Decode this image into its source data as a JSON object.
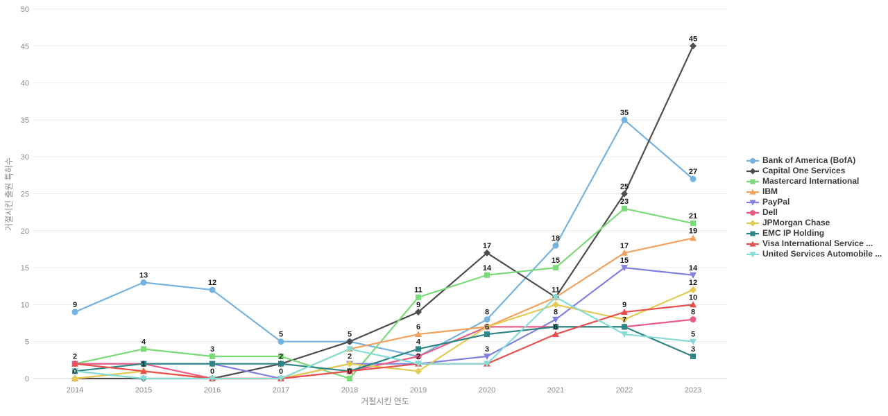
{
  "chart_data": {
    "type": "line",
    "title": "",
    "xlabel": "거절시킨 연도",
    "ylabel": "거절시킨 출원 특허수",
    "x": [
      2014,
      2015,
      2016,
      2017,
      2018,
      2019,
      2020,
      2021,
      2022,
      2023
    ],
    "yticks": [
      0,
      5,
      10,
      15,
      20,
      25,
      30,
      35,
      40,
      45,
      50
    ],
    "ylim": [
      0,
      50
    ],
    "grid": "horizontal",
    "legend_position": "right",
    "axis_text_color": "#8a8a8a",
    "point_label_color": "#1a1a1a",
    "series": [
      {
        "name": "Bank of America (BofA)",
        "color": "#74b2e2",
        "marker": "circle",
        "values": [
          9,
          13,
          12,
          5,
          5,
          3,
          8,
          18,
          35,
          27
        ],
        "labels": [
          9,
          13,
          12,
          5,
          null,
          null,
          8,
          18,
          35,
          27
        ]
      },
      {
        "name": "Capital One Services",
        "color": "#4d4d4d",
        "marker": "diamond",
        "values": [
          0,
          0,
          0,
          2,
          5,
          9,
          17,
          11,
          25,
          45
        ],
        "labels": [
          null,
          null,
          null,
          null,
          5,
          9,
          17,
          null,
          25,
          45
        ]
      },
      {
        "name": "Mastercard International",
        "color": "#79da77",
        "marker": "square",
        "values": [
          2,
          4,
          3,
          3,
          0,
          11,
          14,
          15,
          23,
          21
        ],
        "labels": [
          2,
          4,
          3,
          null,
          0,
          11,
          14,
          15,
          23,
          21
        ]
      },
      {
        "name": "IBM",
        "color": "#f4a05a",
        "marker": "triangle-up",
        "values": [
          0,
          1,
          0,
          0,
          4,
          6,
          7,
          11,
          17,
          19
        ],
        "labels": [
          null,
          null,
          null,
          null,
          null,
          6,
          null,
          11,
          17,
          19
        ]
      },
      {
        "name": "PayPal",
        "color": "#8080e0",
        "marker": "triangle-down",
        "values": [
          2,
          2,
          2,
          0,
          2,
          2,
          3,
          8,
          15,
          14
        ],
        "labels": [
          null,
          null,
          null,
          0,
          null,
          null,
          3,
          8,
          15,
          14
        ]
      },
      {
        "name": "Dell",
        "color": "#e95d85",
        "marker": "circle",
        "values": [
          2,
          2,
          0,
          0,
          1,
          3,
          7,
          7,
          7,
          8
        ],
        "labels": [
          null,
          null,
          null,
          null,
          null,
          null,
          null,
          null,
          null,
          8
        ]
      },
      {
        "name": "JPMorgan Chase",
        "color": "#e4ca52",
        "marker": "diamond",
        "values": [
          0,
          1,
          0,
          0,
          2,
          1,
          7,
          10,
          8,
          12
        ],
        "labels": [
          0,
          null,
          null,
          null,
          2,
          null,
          null,
          null,
          null,
          12
        ]
      },
      {
        "name": "EMC IP Holding",
        "color": "#2d8585",
        "marker": "square",
        "values": [
          1,
          2,
          2,
          2,
          1,
          4,
          6,
          7,
          7,
          3
        ],
        "labels": [
          null,
          null,
          null,
          2,
          null,
          4,
          6,
          null,
          7,
          3
        ]
      },
      {
        "name": "Visa International Service ...",
        "color": "#e94f4f",
        "marker": "triangle-up",
        "values": [
          2,
          1,
          0,
          0,
          1,
          2,
          2,
          6,
          9,
          10
        ],
        "labels": [
          null,
          1,
          null,
          null,
          null,
          null,
          null,
          6,
          9,
          10
        ]
      },
      {
        "name": "United Services Automobile ...",
        "color": "#84dcd4",
        "marker": "triangle-down",
        "values": [
          1,
          0,
          0,
          0,
          4,
          2,
          2,
          11,
          6,
          5
        ],
        "labels": [
          null,
          null,
          0,
          null,
          null,
          2,
          null,
          null,
          null,
          5
        ]
      }
    ]
  }
}
